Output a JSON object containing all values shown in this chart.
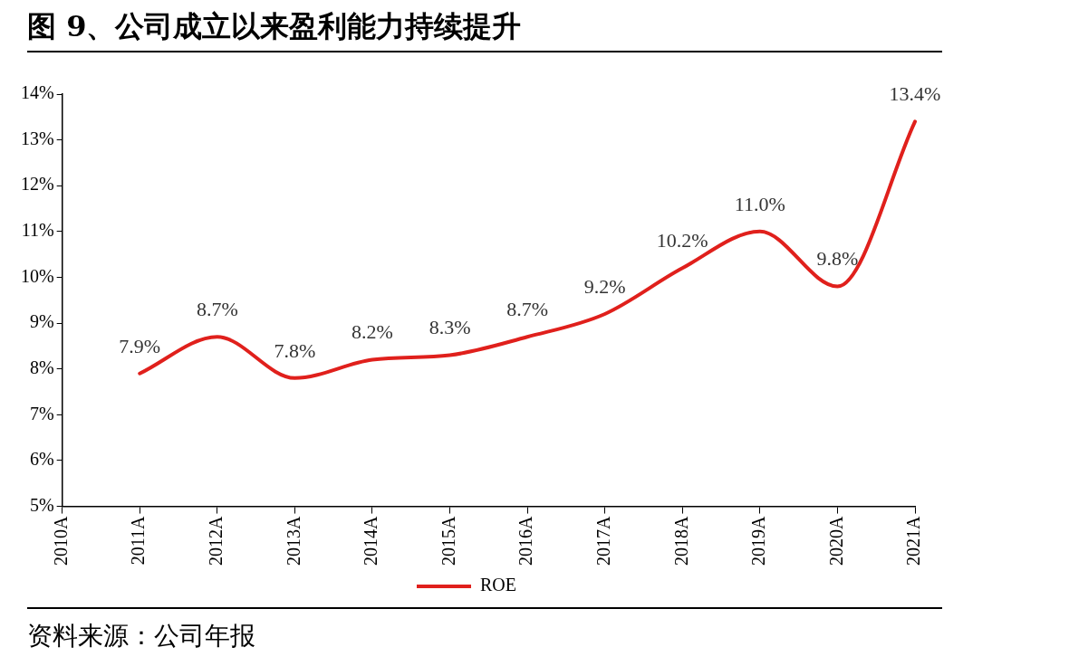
{
  "chart_data": {
    "type": "line",
    "title": "图 9、公司成立以来盈利能力持续提升",
    "categories": [
      "2010A",
      "2011A",
      "2012A",
      "2013A",
      "2014A",
      "2015A",
      "2016A",
      "2017A",
      "2018A",
      "2019A",
      "2020A",
      "2021A"
    ],
    "series": [
      {
        "name": "ROE",
        "color": "#e0201c",
        "values": [
          null,
          7.9,
          8.7,
          7.8,
          8.2,
          8.3,
          8.7,
          9.2,
          10.2,
          11.0,
          9.8,
          13.4
        ],
        "value_labels": [
          null,
          "7.9%",
          "8.7%",
          "7.8%",
          "8.2%",
          "8.3%",
          "8.7%",
          "9.2%",
          "10.2%",
          "11.0%",
          "9.8%",
          "13.4%"
        ]
      }
    ],
    "ylim": [
      5,
      14
    ],
    "yticks": [
      {
        "value": 5,
        "label": "5%"
      },
      {
        "value": 6,
        "label": "6%"
      },
      {
        "value": 7,
        "label": "7%"
      },
      {
        "value": 8,
        "label": "8%"
      },
      {
        "value": 9,
        "label": "9%"
      },
      {
        "value": 10,
        "label": "10%"
      },
      {
        "value": 11,
        "label": "11%"
      },
      {
        "value": 12,
        "label": "12%"
      },
      {
        "value": 13,
        "label": "13%"
      },
      {
        "value": 14,
        "label": "14%"
      }
    ],
    "grid": false,
    "legend": "bottom",
    "marker": "none",
    "line_style": "solid",
    "annotations": [
      "资料来源：公司年报"
    ]
  }
}
